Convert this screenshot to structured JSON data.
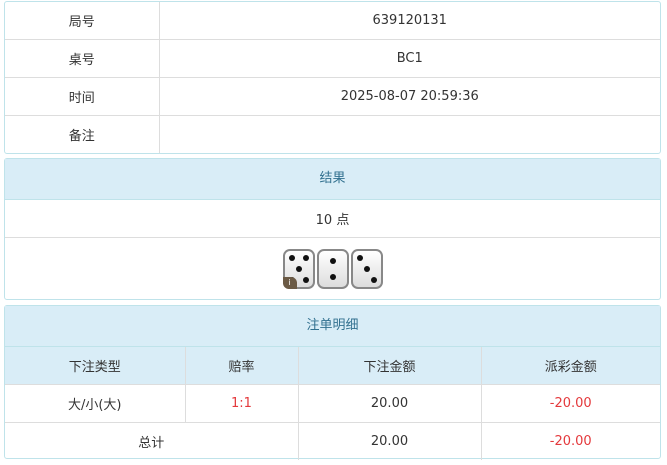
{
  "info": {
    "rows": [
      {
        "label": "局号",
        "value": "639120131"
      },
      {
        "label": "桌号",
        "value": "BC1"
      },
      {
        "label": "时间",
        "value": "2025-08-07 20:59:36"
      },
      {
        "label": "备注",
        "value": ""
      }
    ]
  },
  "result": {
    "title": "结果",
    "points": "10 点",
    "dice": [
      5,
      2,
      3
    ]
  },
  "bets": {
    "title": "注单明细",
    "headers": [
      "下注类型",
      "赔率",
      "下注金额",
      "派彩金额"
    ],
    "rows": [
      {
        "type": "大/小(大)",
        "odds": "1:1",
        "amount": "20.00",
        "payout": "-20.00"
      }
    ],
    "total": {
      "label": "总计",
      "amount": "20.00",
      "payout": "-20.00"
    }
  },
  "colors": {
    "header_bg": "#d9edf7",
    "negative": "#e4393c"
  }
}
